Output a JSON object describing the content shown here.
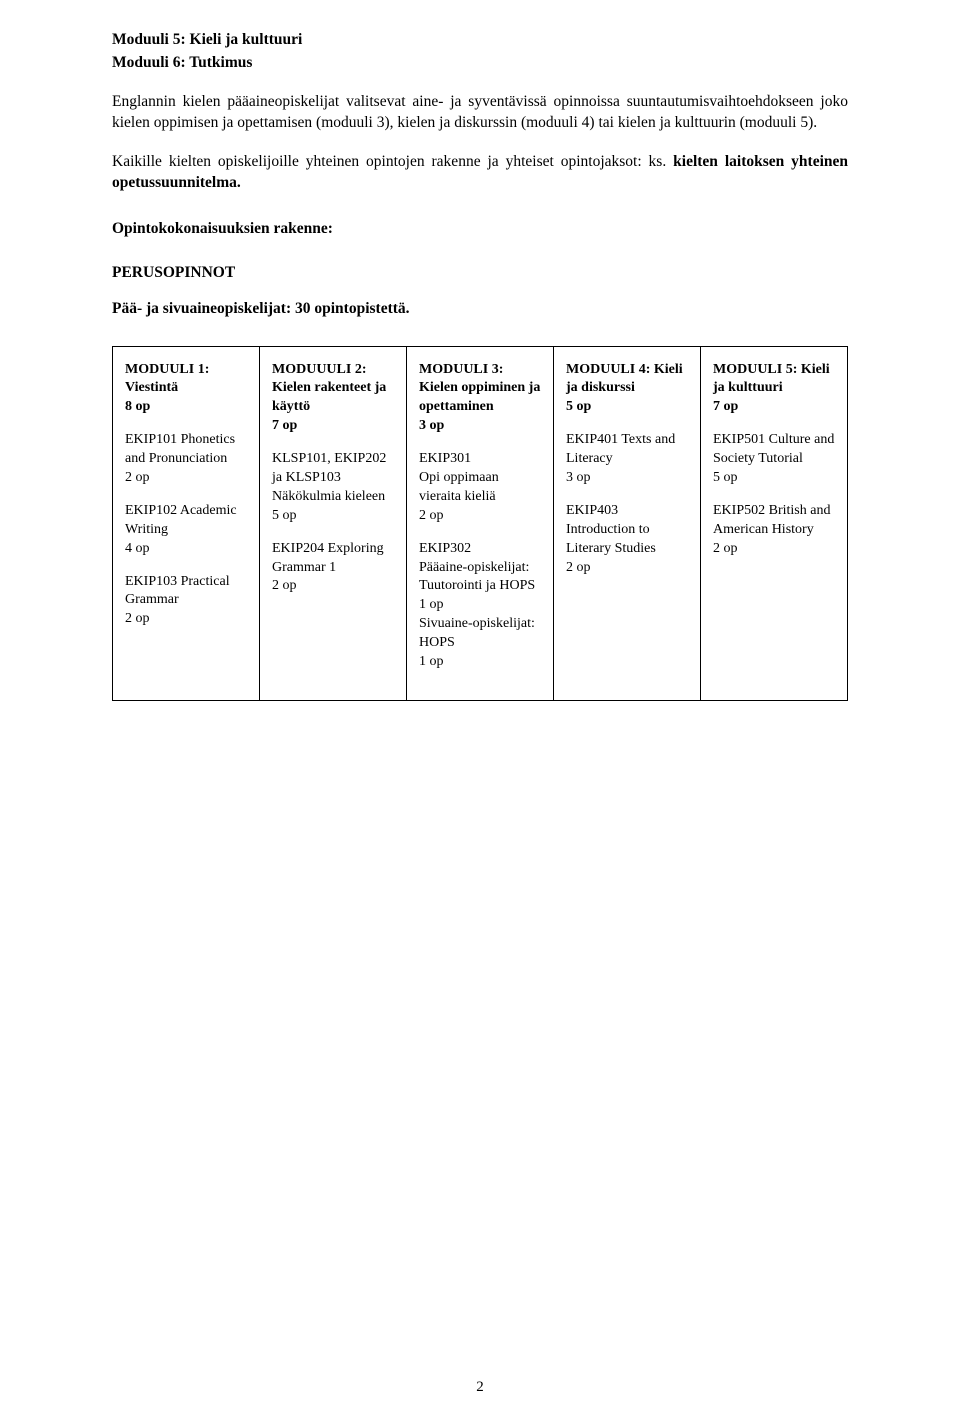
{
  "top": {
    "l1": "Moduuli 5: Kieli ja kulttuuri",
    "l2": "Moduuli 6: Tutkimus"
  },
  "p1": "Englannin kielen pääaineopiskelijat valitsevat aine- ja syventävissä opinnoissa suuntautumisvaihtoehdokseen joko kielen oppimisen ja opettamisen (moduuli 3), kielen ja diskurssin (moduuli 4) tai kielen ja kulttuurin (moduuli 5).",
  "p2a": "Kaikille kielten opiskelijoille yhteinen opintojen rakenne ja yhteiset opintojaksot: ks. ",
  "p2b": "kielten laitoksen yhteinen opetussuunnitelma.",
  "h1": "Opintokokonaisuuksien rakenne:",
  "h2": "PERUSOPINNOT",
  "h3": "Pää- ja sivuaineopiskelijat: 30 opintopistettä.",
  "mods": {
    "m1": {
      "title": "MODUULI 1: Viestintä",
      "credits": "8 op",
      "c1": "EKIP101 Phonetics and Pronunciation",
      "c1op": "2 op",
      "c2": "EKIP102 Academic Writing",
      "c2op": "4 op",
      "c3": "EKIP103 Practical Grammar",
      "c3op": "2 op"
    },
    "m2": {
      "title": "MODUUULI 2: Kielen rakenteet ja käyttö",
      "credits": "7 op",
      "c1": "KLSP101, EKIP202 ja KLSP103 Näkökulmia kieleen",
      "c1op": "5 op",
      "c2": "EKIP204 Exploring Grammar 1",
      "c2op": "2 op"
    },
    "m3": {
      "title": "MODUULI 3: Kielen oppiminen ja opettaminen",
      "credits": "3 op",
      "c1": "EKIP301",
      "c1b": "Opi oppimaan vieraita kieliä",
      "c1op": "2 op",
      "c2a": "EKIP302",
      "c2b": "Pääaine-opiskelijat: Tuutorointi ja HOPS",
      "c2op": "1 op",
      "c2c": "Sivuaine-opiskelijat: HOPS",
      "c2op2": "1 op"
    },
    "m4": {
      "title": "MODUULI 4: Kieli ja diskurssi",
      "credits": "5 op",
      "c1": "EKIP401 Texts and Literacy",
      "c1op": "3 op",
      "c2": "EKIP403 Introduction to Literary Studies",
      "c2op": "2 op"
    },
    "m5": {
      "title": "MODUULI 5: Kieli ja kulttuuri",
      "credits": "7 op",
      "c1": "EKIP501 Culture and Society Tutorial",
      "c1op": "5 op",
      "c2": "EKIP502 British and American History",
      "c2op": "2 op"
    }
  },
  "pageNumber": "2"
}
